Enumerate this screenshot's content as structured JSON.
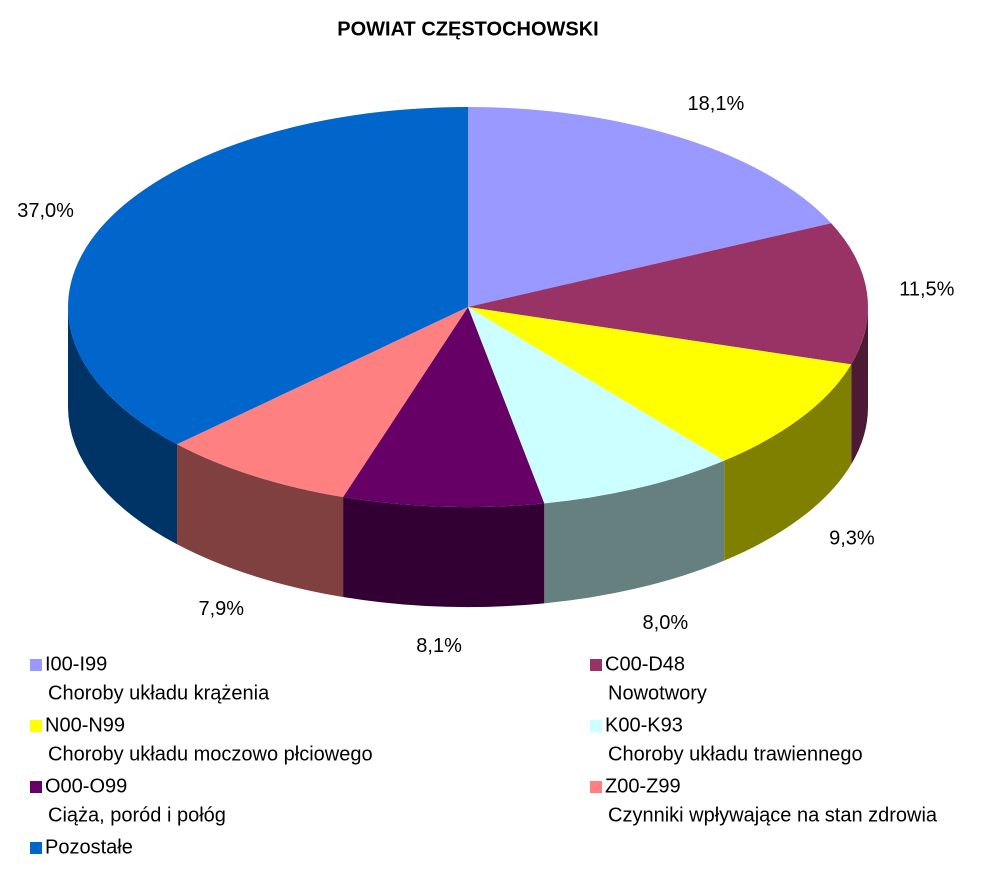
{
  "chart_data": {
    "type": "pie",
    "title": "POWIAT CZĘSTOCHOWSKI",
    "categories": [
      "I00-I99",
      "C00-D48",
      "N00-N99",
      "K00-K93",
      "O00-O99",
      "Z00-Z99",
      "Pozostałe"
    ],
    "descriptions": [
      "Choroby układu krążenia",
      "Nowotwory",
      "Choroby układu moczowo płciowego",
      "Choroby układu trawiennego",
      "Ciąża, poród i połóg",
      "Czynniki wpływające na stan zdrowia",
      null
    ],
    "values": [
      18.1,
      11.5,
      9.3,
      8.0,
      8.1,
      7.9,
      37.0
    ],
    "value_labels": [
      "18,1%",
      "11,5%",
      "9,3%",
      "8,0%",
      "8,1%",
      "7,9%",
      "37,0%"
    ],
    "colors": [
      "#9999ff",
      "#993366",
      "#ffff00",
      "#ccffff",
      "#660066",
      "#ff8080",
      "#0066cc"
    ],
    "legend": "bottom"
  }
}
